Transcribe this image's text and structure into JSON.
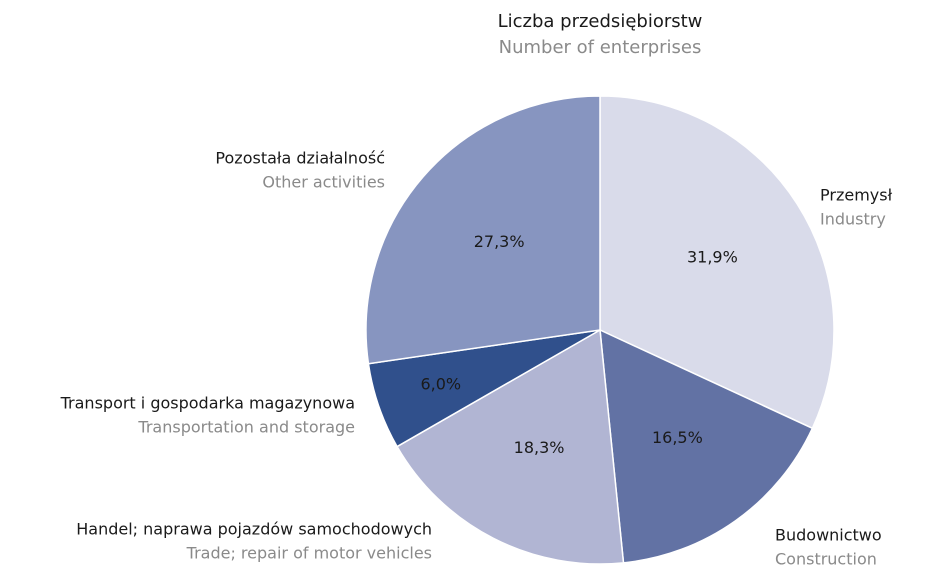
{
  "chart_data": {
    "type": "pie",
    "title": "Liczba przedsiębiorstw",
    "subtitle": "Number of enterprises",
    "categories": [
      "Przemysł",
      "Budownictwo",
      "Handel; naprawa pojazdów samochodowych",
      "Transport i gospodarka magazynowa",
      "Pozostała działalność"
    ],
    "categories_en": [
      "Industry",
      "Construction",
      "Trade; repair of motor vehicles",
      "Transportation and storage",
      "Other activities"
    ],
    "values": [
      31.9,
      16.5,
      18.3,
      6.0,
      27.3
    ],
    "value_labels": [
      "31,9%",
      "16,5%",
      "18,3%",
      "6,0%",
      "27,3%"
    ],
    "colors": [
      "#d9dbea",
      "#6272a4",
      "#b1b5d3",
      "#30508c",
      "#8795c0"
    ]
  }
}
